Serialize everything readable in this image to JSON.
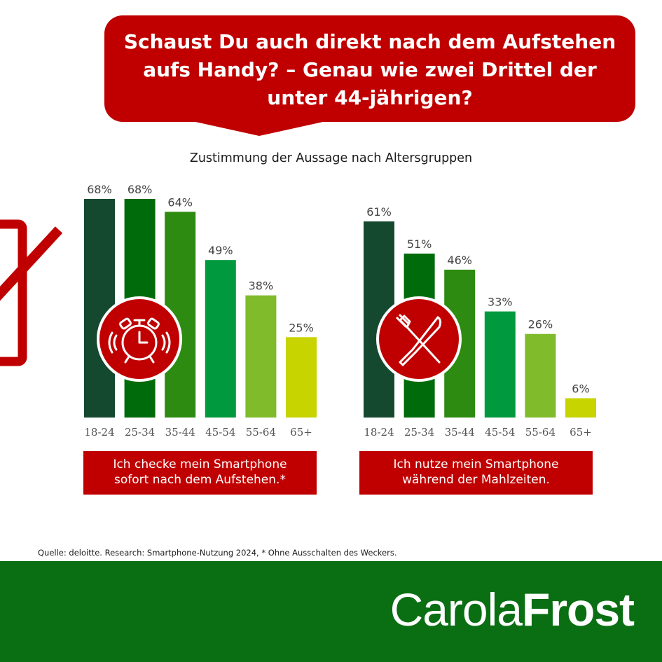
{
  "headline": {
    "line1": "Schaust Du auch direkt nach dem Aufstehen",
    "line2": "aufs Handy? – Genau wie zwei Drittel der",
    "line3": "unter 44-jährigen?"
  },
  "subtitle": "Zustimmung der Aussage nach Altersgruppen",
  "colors": [
    "#14492f",
    "#006b0a",
    "#2e8b12",
    "#00993d",
    "#7fbb2a",
    "#c8d400"
  ],
  "chart_data": [
    {
      "type": "bar",
      "categories": [
        "18-24",
        "25-34",
        "35-44",
        "45-54",
        "55-64",
        "65+"
      ],
      "values": [
        68,
        68,
        64,
        49,
        38,
        25
      ],
      "labels": [
        "68%",
        "68%",
        "64%",
        "49%",
        "38%",
        "25%"
      ],
      "unit": "%",
      "caption_line1": "Ich checke mein Smartphone",
      "caption_line2": "sofort nach dem Aufstehen.*",
      "icon": "alarm-clock-icon",
      "ylim": [
        0,
        68
      ],
      "grid": false
    },
    {
      "type": "bar",
      "categories": [
        "18-24",
        "25-34",
        "35-44",
        "45-54",
        "55-64",
        "65+"
      ],
      "values": [
        61,
        51,
        46,
        33,
        26,
        6
      ],
      "labels": [
        "61%",
        "51%",
        "46%",
        "33%",
        "26%",
        "6%"
      ],
      "unit": "%",
      "caption_line1": "Ich nutze mein Smartphone",
      "caption_line2": "während der Mahlzeiten.",
      "icon": "fork-knife-icon",
      "ylim": [
        0,
        68
      ],
      "grid": false
    }
  ],
  "source": "Quelle: deloitte. Research: Smartphone-Nutzung 2024, * Ohne Ausschalten des Weckers.",
  "brand": {
    "first": "Carola",
    "last": "Frost"
  },
  "decor_icon": "no-phone-icon"
}
